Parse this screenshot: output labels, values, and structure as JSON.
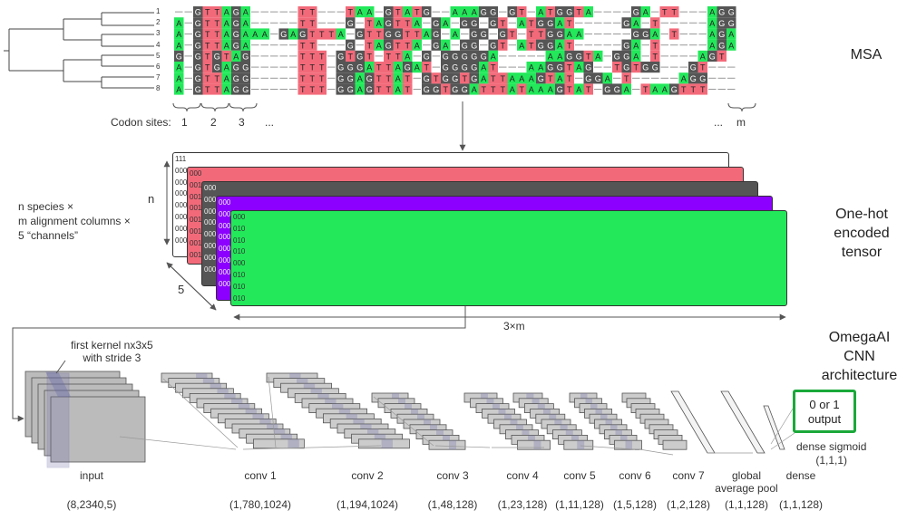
{
  "msa": {
    "title": "MSA",
    "row_numbers": [
      "1",
      "2",
      "3",
      "4",
      "5",
      "6",
      "7",
      "8"
    ],
    "codon_label": "Codon sites:",
    "codon_ticks": [
      "1",
      "2",
      "3",
      "...",
      "...",
      "m"
    ],
    "palette": {
      "A": "#22e85a",
      "G": "#555555",
      "T": "#f26a7a",
      "C": "#8c00ff",
      "gap": "#ffffff"
    },
    "sequences": [
      "--GTTAGA-----TT---TAA-GTATG--AAAGG-GT-ATGGTA----GA-TT---AGG",
      "A-GTTAGA-----TT---G-TAGTTA-GA-GG-GT-ATGGAT-----GA-T-----AGG",
      "A-GTTAGAAA-GAGTTTA-GTTGGTTAG-A-GG-GT-TTGGAA-----GGA-T---AGA",
      "A-GTTAGA-----TT---G-TAGTTA-GA-GG-GT-ATGGAT-----GA-T-----AGA",
      "G-GTGTAG-----TTT-GTGT-TTA-G-GGGGGA-----AAGGTA-GGA-T----AGT",
      "A-GTGAGG-----TTT-GGGATTAGAT-GGGGAT---AAGGTAG--TGTGG---GT---",
      "A-GTTAGG-----TTT-GGAGTTAT-GTGGTGATTAAAGTAT-GGA-T-----AGG---",
      "A-GTTAGG-----TTT-GGAGTTAT-GGTGGATTTATAAAGTAT-GGA-TAAGTTT---"
    ]
  },
  "onehot": {
    "title_l1": "One-hot",
    "title_l2": "encoded",
    "title_l3": "tensor",
    "desc_l1": "n species ×",
    "desc_l2": "m alignment columns ×",
    "desc_l3": "5 “channels”",
    "n_label": "n",
    "five_label": "5",
    "width_label": "3×m",
    "layer_colors": [
      "#ffffff",
      "#f26a7a",
      "#555555",
      "#8c00ff",
      "#22e85a"
    ],
    "layer0_codes": [
      "111",
      "000",
      "000",
      "000",
      "000",
      "000",
      "000",
      "000"
    ],
    "layer1_codes": [
      "000",
      "001",
      "001",
      "001",
      "001",
      "001",
      "001",
      "001"
    ],
    "layer2_codes": [
      "000",
      "000",
      "000",
      "000",
      "000",
      "000",
      "000",
      "000"
    ],
    "layer3_codes": [
      "000",
      "000",
      "000",
      "000",
      "000",
      "000",
      "000",
      "000"
    ],
    "layer4_codes": [
      "000",
      "010",
      "010",
      "010",
      "000",
      "010",
      "010",
      "010"
    ]
  },
  "cnn": {
    "title_l1": "OmegaAI",
    "title_l2": "CNN",
    "title_l3": "architecture",
    "kernel_note_l1": "first kernel nx3x5",
    "kernel_note_l2": "with stride 3",
    "output_l1": "0 or 1",
    "output_l2": "output",
    "dense_note_l1": "dense sigmoid",
    "dense_note_l2": "(1,1,1)",
    "layers": [
      {
        "name": "input",
        "name2": "",
        "shape": "(8,2340,5)"
      },
      {
        "name": "conv 1",
        "name2": "",
        "shape": "(1,780,1024)"
      },
      {
        "name": "conv 2",
        "name2": "",
        "shape": "(1,194,1024)"
      },
      {
        "name": "conv 3",
        "name2": "",
        "shape": "(1,48,128)"
      },
      {
        "name": "conv 4",
        "name2": "",
        "shape": "(1,23,128)"
      },
      {
        "name": "conv 5",
        "name2": "",
        "shape": "(1,11,128)"
      },
      {
        "name": "conv 6",
        "name2": "",
        "shape": "(1,5,128)"
      },
      {
        "name": "conv 7",
        "name2": "",
        "shape": "(1,2,128)"
      },
      {
        "name": "global",
        "name2": "average pool",
        "shape": "(1,1,128)"
      },
      {
        "name": "dense",
        "name2": "",
        "shape": "(1,1,128)"
      }
    ]
  }
}
